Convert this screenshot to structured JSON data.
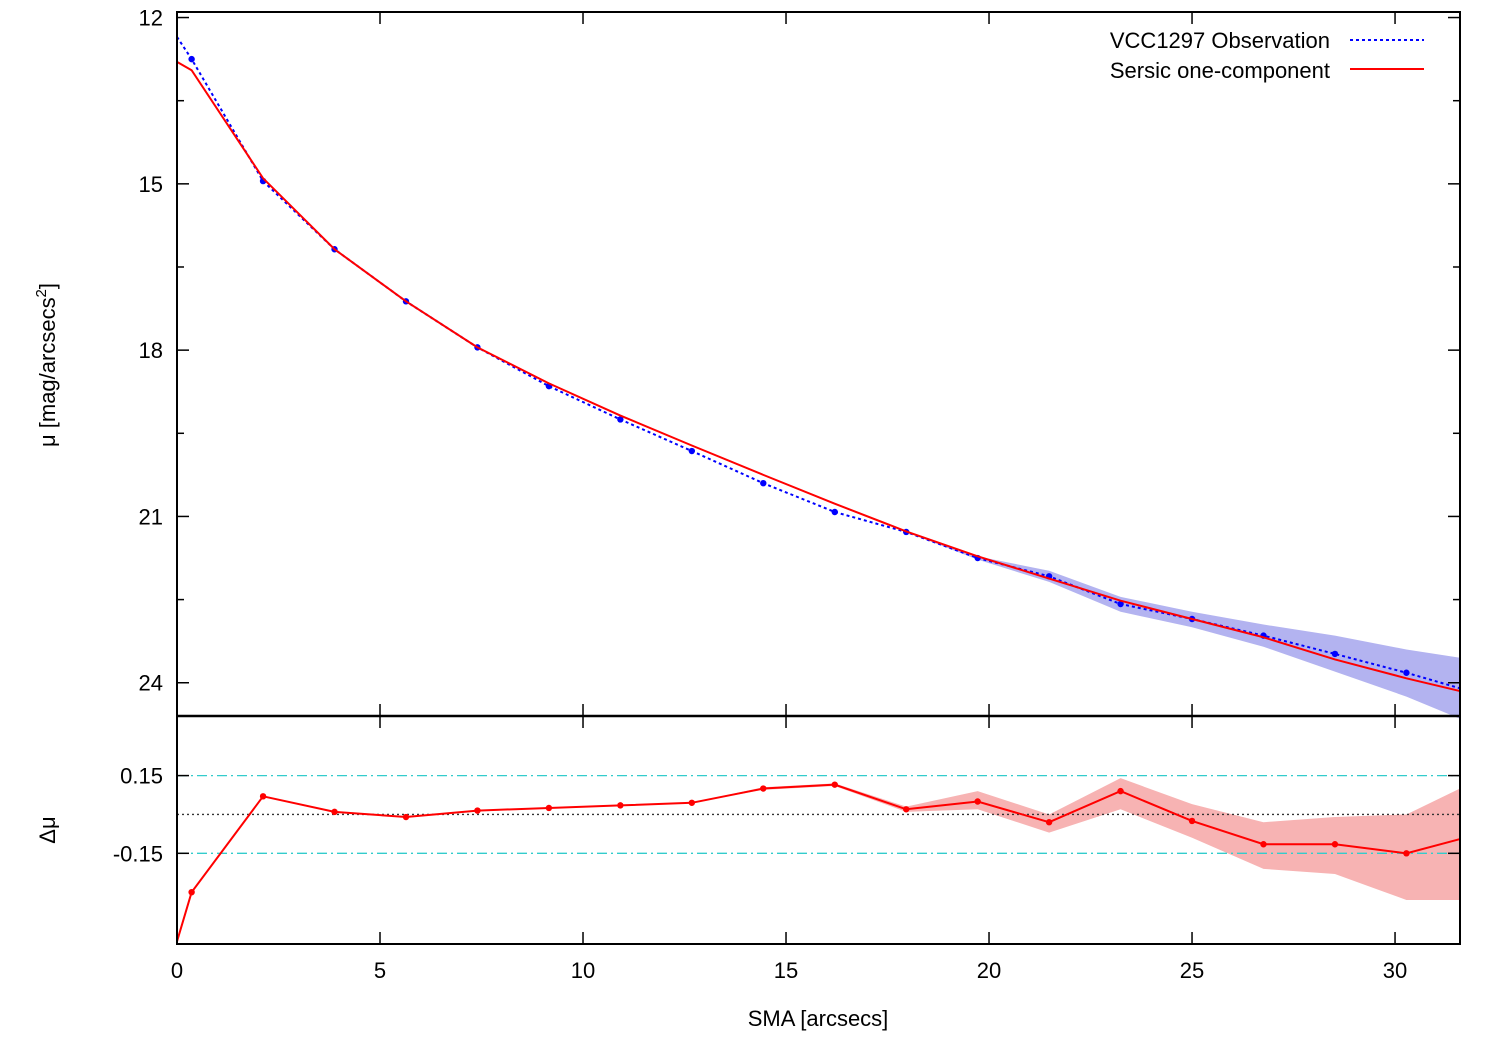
{
  "chart_data": [
    {
      "type": "line",
      "panel": "top",
      "xlim": [
        0,
        31.6
      ],
      "ylim": [
        24.6,
        11.9
      ],
      "y_inverted": true,
      "ylabel": "μ [mag/arcsecs",
      "ylabel_sup": "2",
      "ylabel_close": "]",
      "y_ticks": [
        12,
        15,
        18,
        21,
        24
      ],
      "y_tick_labels": [
        "12",
        "15",
        "18",
        "21",
        "24"
      ],
      "legend_position": "top-right",
      "series": [
        {
          "name": "VCC1297 Observation",
          "style": "dotted",
          "color": "#0000ff",
          "band_color": "#b3b3f0",
          "x": [
            0.36,
            2.12,
            3.88,
            5.64,
            7.4,
            9.16,
            10.92,
            12.68,
            14.44,
            16.2,
            17.96,
            19.72,
            21.48,
            23.24,
            25.0,
            26.76,
            28.52,
            30.28,
            31.6
          ],
          "values": [
            12.75,
            14.95,
            16.18,
            17.12,
            17.95,
            18.65,
            19.25,
            19.82,
            20.4,
            20.92,
            21.28,
            21.75,
            22.08,
            22.58,
            22.85,
            23.15,
            23.48,
            23.82,
            24.1
          ],
          "band_low": [
            12.75,
            14.95,
            16.18,
            17.12,
            17.95,
            18.65,
            19.25,
            19.82,
            20.4,
            20.92,
            21.28,
            21.72,
            21.98,
            22.45,
            22.72,
            22.95,
            23.15,
            23.4,
            23.55
          ],
          "band_high": [
            12.75,
            14.95,
            16.18,
            17.12,
            17.95,
            18.65,
            19.25,
            19.82,
            20.4,
            20.92,
            21.28,
            21.78,
            22.18,
            22.72,
            23.0,
            23.35,
            23.8,
            24.25,
            24.65
          ]
        },
        {
          "name": "Sersic one-component",
          "style": "solid",
          "color": "#ff0000",
          "x": [
            0.0,
            0.36,
            2.12,
            3.88,
            5.64,
            7.4,
            9.16,
            10.92,
            12.68,
            14.44,
            16.2,
            17.96,
            19.72,
            21.48,
            23.24,
            25.0,
            26.76,
            28.52,
            30.28,
            31.6
          ],
          "values": [
            12.8,
            12.95,
            14.9,
            16.18,
            17.12,
            17.95,
            18.6,
            19.18,
            19.72,
            20.25,
            20.77,
            21.27,
            21.72,
            22.12,
            22.52,
            22.85,
            23.18,
            23.58,
            23.92,
            24.15
          ]
        }
      ]
    },
    {
      "type": "line",
      "panel": "bottom",
      "xlim": [
        0,
        31.6
      ],
      "ylim": [
        -0.5,
        0.38
      ],
      "ylabel": "Δμ",
      "xlabel": "SMA [arcsecs]",
      "x_ticks": [
        0,
        5,
        10,
        15,
        20,
        25,
        30
      ],
      "x_tick_labels": [
        "0",
        "5",
        "10",
        "15",
        "20",
        "25",
        "30"
      ],
      "y_ticks": [
        0.15,
        -0.15
      ],
      "y_tick_labels": [
        "0.15",
        "-0.15"
      ],
      "reference_lines": [
        {
          "y": 0.15,
          "style": "dash-dot",
          "color": "#33cccc"
        },
        {
          "y": 0.0,
          "style": "dotted",
          "color": "#333333"
        },
        {
          "y": -0.15,
          "style": "dash-dot",
          "color": "#33cccc"
        }
      ],
      "series": [
        {
          "name": "",
          "color": "#ff0000",
          "band_color": "#f7b3b3",
          "x": [
            0.0,
            0.36,
            2.12,
            3.88,
            5.64,
            7.4,
            9.16,
            10.92,
            12.68,
            14.44,
            16.2,
            17.96,
            19.72,
            21.48,
            23.24,
            25.0,
            26.76,
            28.52,
            30.28,
            31.6
          ],
          "values": [
            -0.49,
            -0.3,
            0.07,
            0.01,
            -0.01,
            0.015,
            0.025,
            0.035,
            0.045,
            0.1,
            0.115,
            0.02,
            0.05,
            -0.03,
            0.09,
            -0.025,
            -0.115,
            -0.115,
            -0.15,
            -0.095
          ],
          "band_low": [
            -0.49,
            -0.3,
            0.07,
            0.01,
            -0.01,
            0.015,
            0.025,
            0.035,
            0.045,
            0.095,
            0.11,
            0.01,
            0.02,
            -0.07,
            0.02,
            -0.09,
            -0.21,
            -0.23,
            -0.33,
            -0.33
          ],
          "band_high": [
            -0.49,
            -0.3,
            0.07,
            0.01,
            -0.01,
            0.015,
            0.025,
            0.035,
            0.045,
            0.105,
            0.12,
            0.03,
            0.09,
            0.0,
            0.14,
            0.04,
            -0.03,
            -0.01,
            0.0,
            0.1
          ]
        }
      ]
    }
  ]
}
